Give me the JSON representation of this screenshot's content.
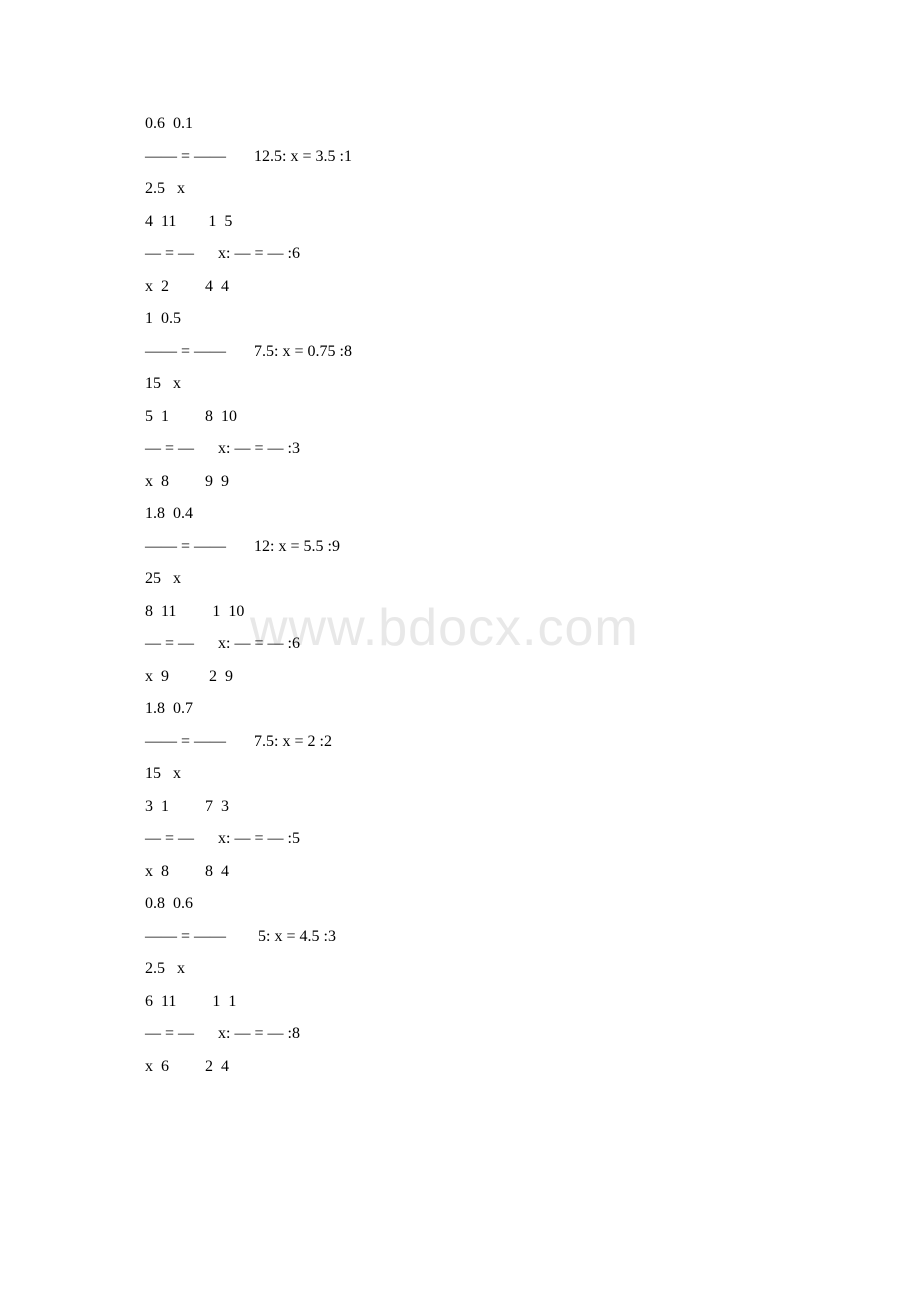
{
  "watermark": "www.bdocx.com",
  "lines": [
    "0.6  0.1",
    "—— = ——       12.5: x = 3.5 :1",
    "2.5   x",
    "4  11        1  5",
    "— = —      x: — = — :6",
    "x  2         4  4",
    "1  0.5",
    "—— = ——       7.5: x = 0.75 :8",
    "15   x",
    "5  1         8  10",
    "— = —      x: — = — :3",
    "x  8         9  9",
    "1.8  0.4",
    "—— = ——       12: x = 5.5 :9",
    "25   x",
    "8  11         1  10",
    "— = —      x: — = — :6",
    "x  9          2  9",
    "1.8  0.7",
    "—— = ——       7.5: x = 2 :2",
    "15   x",
    "3  1         7  3",
    "— = —      x: — = — :5",
    "x  8         8  4",
    "0.8  0.6",
    "—— = ——        5: x = 4.5 :3",
    "2.5   x",
    "6  11         1  1",
    "— = —      x: — = — :8",
    "x  6         2  4"
  ]
}
